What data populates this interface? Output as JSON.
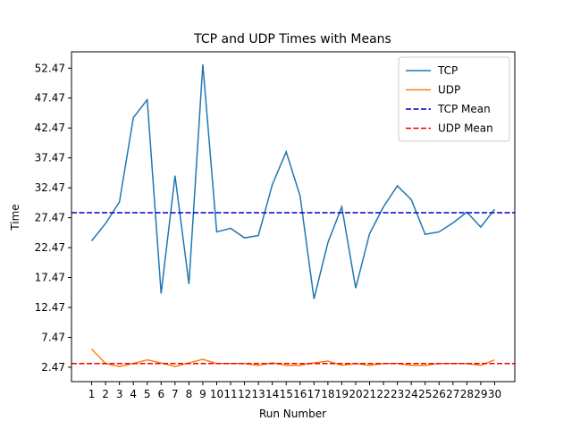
{
  "chart_data": {
    "type": "line",
    "title": "TCP and UDP Times with Means",
    "x_label": "Run Number",
    "y_label": "Time",
    "x": [
      1,
      2,
      3,
      4,
      5,
      6,
      7,
      8,
      9,
      10,
      11,
      12,
      13,
      14,
      15,
      16,
      17,
      18,
      19,
      20,
      21,
      22,
      23,
      24,
      25,
      26,
      27,
      28,
      29,
      30
    ],
    "series": [
      {
        "name": "TCP",
        "color": "#1f77b4",
        "values": [
          23.6,
          26.5,
          30.1,
          44.2,
          47.2,
          14.8,
          34.5,
          16.4,
          53.1,
          25.1,
          25.7,
          24.1,
          24.5,
          33.0,
          38.5,
          31.1,
          13.9,
          23.3,
          29.3,
          15.7,
          24.8,
          29.3,
          32.8,
          30.5,
          24.7,
          25.1,
          26.6,
          28.4,
          25.9,
          28.9
        ]
      },
      {
        "name": "UDP",
        "color": "#ff7f0e",
        "values": [
          5.5,
          3.1,
          2.6,
          3.1,
          3.7,
          3.2,
          2.6,
          3.2,
          3.8,
          3.1,
          3.1,
          3.1,
          2.8,
          3.2,
          2.8,
          2.8,
          3.2,
          3.5,
          2.8,
          3.1,
          2.8,
          3.1,
          3.1,
          2.8,
          2.8,
          3.1,
          3.1,
          3.1,
          2.8,
          3.7
        ]
      }
    ],
    "mean_lines": [
      {
        "name": "TCP Mean",
        "color": "#0000cc",
        "value": 28.3
      },
      {
        "name": "UDP Mean",
        "color": "#ee0000",
        "value": 3.1
      }
    ],
    "xlim": [
      -0.45,
      31.45
    ],
    "ylim": [
      0.07,
      55.2
    ],
    "xticks": [
      1,
      2,
      3,
      4,
      5,
      6,
      7,
      8,
      9,
      10,
      11,
      12,
      13,
      14,
      15,
      16,
      17,
      18,
      19,
      20,
      21,
      22,
      23,
      24,
      25,
      26,
      27,
      28,
      29,
      30
    ],
    "yticks": [
      2.47,
      7.47,
      12.47,
      17.47,
      22.47,
      27.47,
      32.47,
      37.47,
      42.47,
      47.47,
      52.47
    ],
    "legend": "upper right"
  }
}
